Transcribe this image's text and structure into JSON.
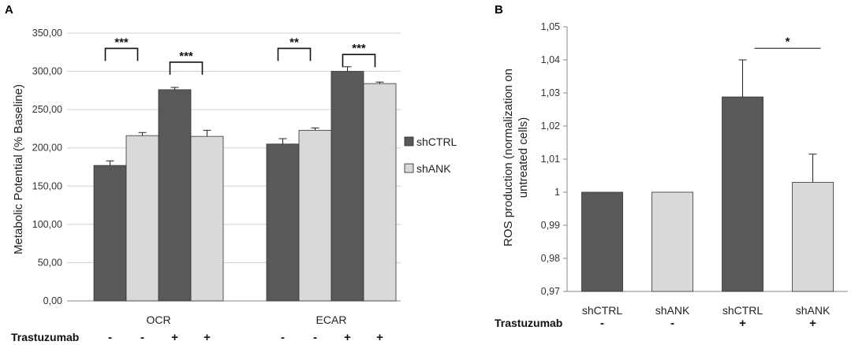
{
  "chart_data": [
    {
      "panel": "A",
      "type": "bar",
      "ylabel": "Metabolic Potential (% Baseline)",
      "ylim": [
        0,
        350
      ],
      "yticks": [
        "0,00",
        "50,00",
        "100,00",
        "150,00",
        "200,00",
        "250,00",
        "300,00",
        "350,00"
      ],
      "categories": [
        "OCR",
        "ECAR"
      ],
      "treatment_label": "Trastuzumab",
      "treatment_signs": [
        "-",
        "-",
        "+",
        "+"
      ],
      "colors": {
        "shCTRL": "#595959",
        "shANK": "#d9d9d9"
      },
      "legend": [
        "shCTRL",
        "shANK"
      ],
      "bars": [
        {
          "category": "OCR",
          "series": "shCTRL",
          "trastuzumab": "-",
          "value": 177,
          "error": 6
        },
        {
          "category": "OCR",
          "series": "shANK",
          "trastuzumab": "-",
          "value": 216,
          "error": 4
        },
        {
          "category": "OCR",
          "series": "shCTRL",
          "trastuzumab": "+",
          "value": 276,
          "error": 3
        },
        {
          "category": "OCR",
          "series": "shANK",
          "trastuzumab": "+",
          "value": 215,
          "error": 8
        },
        {
          "category": "ECAR",
          "series": "shCTRL",
          "trastuzumab": "-",
          "value": 205,
          "error": 7
        },
        {
          "category": "ECAR",
          "series": "shANK",
          "trastuzumab": "-",
          "value": 223,
          "error": 3
        },
        {
          "category": "ECAR",
          "series": "shCTRL",
          "trastuzumab": "+",
          "value": 300,
          "error": 6
        },
        {
          "category": "ECAR",
          "series": "shANK",
          "trastuzumab": "+",
          "value": 284,
          "error": 2
        }
      ],
      "significance": [
        {
          "pair": [
            0,
            1
          ],
          "label": "***",
          "level": 330
        },
        {
          "pair": [
            2,
            3
          ],
          "label": "***",
          "level": 312
        },
        {
          "pair": [
            4,
            5
          ],
          "label": "**",
          "level": 330
        },
        {
          "pair": [
            6,
            7
          ],
          "label": "***",
          "level": 322
        }
      ]
    },
    {
      "panel": "B",
      "type": "bar",
      "ylabel_line1": "ROS production (normalization on",
      "ylabel_line2": "untreated cells)",
      "ylim": [
        0.97,
        1.05
      ],
      "yticks": [
        "0,97",
        "0,98",
        "0,99",
        "1",
        "1,01",
        "1,02",
        "1,03",
        "1,04",
        "1,05"
      ],
      "categories": [
        "shCTRL",
        "shANK",
        "shCTRL",
        "shANK"
      ],
      "treatment_label": "Trastuzumab",
      "treatment_signs": [
        "-",
        "-",
        "+",
        "+"
      ],
      "colors": [
        "#595959",
        "#d9d9d9",
        "#595959",
        "#d9d9d9"
      ],
      "values": [
        1.0,
        1.0,
        1.0288,
        1.003
      ],
      "errors": [
        0,
        0,
        0.0112,
        0.0085
      ],
      "significance": [
        {
          "pair": [
            2,
            3
          ],
          "label": "*",
          "level": 1.0435
        }
      ]
    }
  ]
}
